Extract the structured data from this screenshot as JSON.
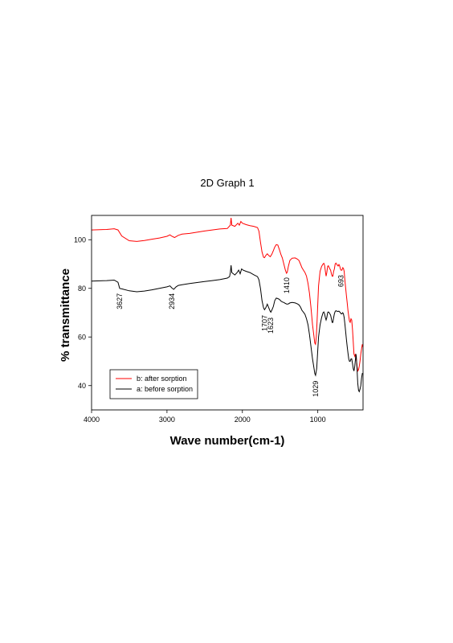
{
  "chart_data": {
    "type": "line",
    "title": "2D Graph 1",
    "xlabel": "Wave number(cm-1)",
    "ylabel": "% transmittance",
    "xlim": [
      4000,
      400
    ],
    "ylim": [
      30,
      110
    ],
    "x_ticks": [
      4000,
      3000,
      2000,
      1000
    ],
    "y_ticks": [
      40,
      60,
      80,
      100
    ],
    "grid": false,
    "legend_position": "bottom-left",
    "series": [
      {
        "name": "b: after sorption",
        "color": "#ff0000",
        "points": [
          [
            4000,
            104
          ],
          [
            3800,
            104.2
          ],
          [
            3700,
            104.5
          ],
          [
            3650,
            104
          ],
          [
            3600,
            101.5
          ],
          [
            3500,
            99.6
          ],
          [
            3400,
            99.3
          ],
          [
            3300,
            99.7
          ],
          [
            3200,
            100.2
          ],
          [
            3100,
            100.7
          ],
          [
            3000,
            101.4
          ],
          [
            2960,
            102
          ],
          [
            2934,
            101.4
          ],
          [
            2900,
            100.9
          ],
          [
            2850,
            101.8
          ],
          [
            2800,
            102.3
          ],
          [
            2700,
            102.6
          ],
          [
            2600,
            103.1
          ],
          [
            2500,
            103.6
          ],
          [
            2400,
            104
          ],
          [
            2300,
            104.4
          ],
          [
            2200,
            104.6
          ],
          [
            2160,
            106
          ],
          [
            2150,
            109
          ],
          [
            2140,
            106
          ],
          [
            2100,
            105.5
          ],
          [
            2060,
            106.8
          ],
          [
            2040,
            106
          ],
          [
            2020,
            107.5
          ],
          [
            2000,
            106.8
          ],
          [
            1950,
            106.2
          ],
          [
            1900,
            105.8
          ],
          [
            1850,
            105.5
          ],
          [
            1800,
            105
          ],
          [
            1780,
            103.5
          ],
          [
            1760,
            99
          ],
          [
            1740,
            95
          ],
          [
            1720,
            92.8
          ],
          [
            1707,
            92.6
          ],
          [
            1690,
            93.5
          ],
          [
            1670,
            94.2
          ],
          [
            1650,
            93.5
          ],
          [
            1630,
            93
          ],
          [
            1610,
            94
          ],
          [
            1590,
            95.5
          ],
          [
            1570,
            97
          ],
          [
            1550,
            98
          ],
          [
            1530,
            97.8
          ],
          [
            1510,
            96
          ],
          [
            1490,
            94
          ],
          [
            1470,
            92.5
          ],
          [
            1450,
            90
          ],
          [
            1430,
            87.5
          ],
          [
            1415,
            86.2
          ],
          [
            1405,
            86.6
          ],
          [
            1390,
            89
          ],
          [
            1370,
            91.5
          ],
          [
            1340,
            92.4
          ],
          [
            1300,
            92.5
          ],
          [
            1270,
            92
          ],
          [
            1250,
            91.5
          ],
          [
            1230,
            90
          ],
          [
            1210,
            88.5
          ],
          [
            1190,
            87.5
          ],
          [
            1170,
            86.5
          ],
          [
            1150,
            85
          ],
          [
            1130,
            82
          ],
          [
            1110,
            78
          ],
          [
            1090,
            72
          ],
          [
            1070,
            65
          ],
          [
            1050,
            60
          ],
          [
            1040,
            57.5
          ],
          [
            1030,
            57
          ],
          [
            1020,
            60
          ],
          [
            1010,
            66
          ],
          [
            1000,
            74
          ],
          [
            990,
            81
          ],
          [
            970,
            87
          ],
          [
            950,
            89
          ],
          [
            930,
            90
          ],
          [
            920,
            90.3
          ],
          [
            910,
            89.5
          ],
          [
            900,
            87
          ],
          [
            890,
            85
          ],
          [
            880,
            86.5
          ],
          [
            870,
            89
          ],
          [
            860,
            89.3
          ],
          [
            850,
            88.6
          ],
          [
            840,
            88
          ],
          [
            830,
            87.5
          ],
          [
            820,
            86
          ],
          [
            810,
            85
          ],
          [
            800,
            85
          ],
          [
            790,
            87
          ],
          [
            780,
            88
          ],
          [
            770,
            90
          ],
          [
            760,
            90.4
          ],
          [
            750,
            90
          ],
          [
            740,
            89.5
          ],
          [
            730,
            89.2
          ],
          [
            720,
            89.8
          ],
          [
            710,
            89.2
          ],
          [
            700,
            88
          ],
          [
            693,
            87.5
          ],
          [
            680,
            87.5
          ],
          [
            670,
            88.5
          ],
          [
            660,
            88.2
          ],
          [
            650,
            87
          ],
          [
            640,
            83
          ],
          [
            630,
            80
          ],
          [
            620,
            77
          ],
          [
            610,
            74
          ],
          [
            600,
            71
          ],
          [
            590,
            68.5
          ],
          [
            580,
            66.5
          ],
          [
            570,
            66
          ],
          [
            560,
            67.5
          ],
          [
            550,
            67
          ],
          [
            540,
            63
          ],
          [
            530,
            58
          ],
          [
            520,
            53
          ],
          [
            510,
            52
          ],
          [
            500,
            53
          ],
          [
            490,
            51
          ],
          [
            480,
            48
          ],
          [
            470,
            46
          ],
          [
            460,
            46.5
          ],
          [
            450,
            48
          ],
          [
            440,
            50
          ],
          [
            430,
            53
          ],
          [
            420,
            55
          ],
          [
            410,
            57
          ],
          [
            405,
            56
          ]
        ]
      },
      {
        "name": "a: before sorption",
        "color": "#000000",
        "points": [
          [
            4000,
            83
          ],
          [
            3800,
            83.2
          ],
          [
            3700,
            83.4
          ],
          [
            3650,
            82.5
          ],
          [
            3627,
            80
          ],
          [
            3600,
            79.8
          ],
          [
            3500,
            79
          ],
          [
            3400,
            78.6
          ],
          [
            3300,
            78.9
          ],
          [
            3200,
            79.4
          ],
          [
            3100,
            80
          ],
          [
            3000,
            80.6
          ],
          [
            2960,
            81
          ],
          [
            2934,
            80.1
          ],
          [
            2910,
            79.6
          ],
          [
            2880,
            80.6
          ],
          [
            2850,
            81.2
          ],
          [
            2800,
            81.5
          ],
          [
            2700,
            82
          ],
          [
            2600,
            82.4
          ],
          [
            2500,
            82.8
          ],
          [
            2400,
            83.2
          ],
          [
            2300,
            83.6
          ],
          [
            2200,
            84.2
          ],
          [
            2170,
            84.8
          ],
          [
            2160,
            86.5
          ],
          [
            2150,
            89.5
          ],
          [
            2140,
            86.5
          ],
          [
            2100,
            85.5
          ],
          [
            2070,
            86.5
          ],
          [
            2050,
            87.5
          ],
          [
            2030,
            86
          ],
          [
            2010,
            88
          ],
          [
            1990,
            87.5
          ],
          [
            1950,
            87
          ],
          [
            1900,
            86.5
          ],
          [
            1850,
            85.6
          ],
          [
            1800,
            84.8
          ],
          [
            1780,
            83.5
          ],
          [
            1760,
            80
          ],
          [
            1740,
            75
          ],
          [
            1720,
            72
          ],
          [
            1707,
            71.2
          ],
          [
            1690,
            72
          ],
          [
            1670,
            73.5
          ],
          [
            1650,
            72
          ],
          [
            1630,
            70.5
          ],
          [
            1623,
            70.2
          ],
          [
            1610,
            71
          ],
          [
            1590,
            72.5
          ],
          [
            1570,
            75
          ],
          [
            1550,
            76
          ],
          [
            1530,
            75.8
          ],
          [
            1510,
            75.5
          ],
          [
            1490,
            74.8
          ],
          [
            1470,
            74.4
          ],
          [
            1450,
            74.2
          ],
          [
            1430,
            73.8
          ],
          [
            1410,
            73.5
          ],
          [
            1390,
            73.6
          ],
          [
            1370,
            74
          ],
          [
            1340,
            74.2
          ],
          [
            1300,
            74
          ],
          [
            1270,
            73.6
          ],
          [
            1250,
            73.2
          ],
          [
            1230,
            72.3
          ],
          [
            1210,
            71
          ],
          [
            1190,
            70.2
          ],
          [
            1170,
            69.3
          ],
          [
            1150,
            67.5
          ],
          [
            1130,
            65
          ],
          [
            1110,
            61
          ],
          [
            1090,
            56
          ],
          [
            1070,
            51
          ],
          [
            1050,
            47
          ],
          [
            1040,
            45
          ],
          [
            1029,
            44.2
          ],
          [
            1015,
            47
          ],
          [
            1000,
            55
          ],
          [
            990,
            60
          ],
          [
            970,
            65
          ],
          [
            950,
            68
          ],
          [
            930,
            70
          ],
          [
            920,
            70.3
          ],
          [
            910,
            69.5
          ],
          [
            900,
            68
          ],
          [
            890,
            67
          ],
          [
            880,
            68
          ],
          [
            870,
            70
          ],
          [
            860,
            70.3
          ],
          [
            850,
            70
          ],
          [
            840,
            69.5
          ],
          [
            830,
            69
          ],
          [
            820,
            67.5
          ],
          [
            810,
            66
          ],
          [
            800,
            66
          ],
          [
            790,
            68
          ],
          [
            780,
            69.5
          ],
          [
            770,
            70.5
          ],
          [
            760,
            70.8
          ],
          [
            740,
            70.5
          ],
          [
            720,
            70.6
          ],
          [
            700,
            70
          ],
          [
            690,
            69.5
          ],
          [
            680,
            69.5
          ],
          [
            670,
            70
          ],
          [
            660,
            69.5
          ],
          [
            650,
            68
          ],
          [
            640,
            65
          ],
          [
            630,
            62
          ],
          [
            620,
            59
          ],
          [
            610,
            56
          ],
          [
            600,
            53.5
          ],
          [
            590,
            51
          ],
          [
            580,
            50
          ],
          [
            570,
            50
          ],
          [
            560,
            51
          ],
          [
            550,
            51
          ],
          [
            540,
            49
          ],
          [
            530,
            47
          ],
          [
            520,
            46
          ],
          [
            510,
            48
          ],
          [
            500,
            51
          ],
          [
            495,
            53
          ],
          [
            490,
            52
          ],
          [
            480,
            47
          ],
          [
            470,
            41
          ],
          [
            460,
            38
          ],
          [
            450,
            37.5
          ],
          [
            440,
            38.5
          ],
          [
            430,
            40
          ],
          [
            420,
            43
          ],
          [
            410,
            45
          ],
          [
            405,
            45
          ]
        ]
      }
    ],
    "annotations": [
      {
        "text": "3627",
        "x": 3627,
        "y": 79
      },
      {
        "text": "2934",
        "x": 2934,
        "y": 79
      },
      {
        "text": "1707",
        "x": 1707,
        "y": 70
      },
      {
        "text": "1623",
        "x": 1623,
        "y": 69
      },
      {
        "text": "1410",
        "x": 1410,
        "y": 85.5
      },
      {
        "text": "1029",
        "x": 1029,
        "y": 43
      },
      {
        "text": "693",
        "x": 693,
        "y": 86.5
      }
    ]
  }
}
